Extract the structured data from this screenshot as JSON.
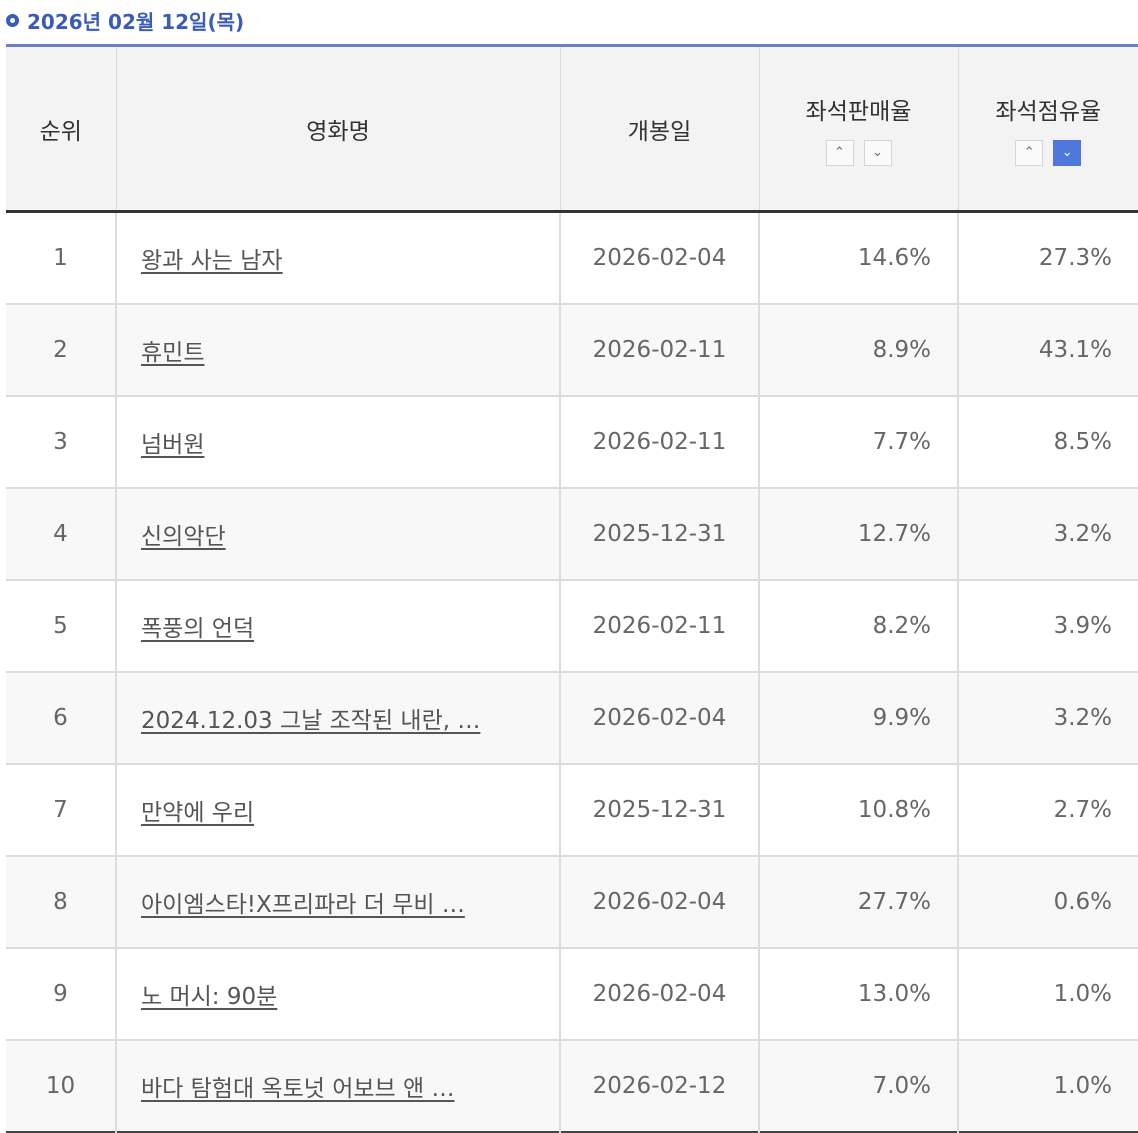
{
  "header": {
    "date_label": "2026년 02월 12일(목)"
  },
  "columns": {
    "rank": "순위",
    "title": "영화명",
    "release": "개봉일",
    "sales_rate": "좌석판매율",
    "share_rate": "좌석점유율"
  },
  "sort": {
    "up_glyph": "⌃",
    "down_glyph": "⌄",
    "active": "share_rate_desc"
  },
  "rows": [
    {
      "rank": "1",
      "title": "왕과 사는 남자",
      "release": "2026-02-04",
      "sales": "14.6%",
      "share": "27.3%"
    },
    {
      "rank": "2",
      "title": "휴민트",
      "release": "2026-02-11",
      "sales": "8.9%",
      "share": "43.1%"
    },
    {
      "rank": "3",
      "title": "넘버원",
      "release": "2026-02-11",
      "sales": "7.7%",
      "share": "8.5%"
    },
    {
      "rank": "4",
      "title": "신의악단",
      "release": "2025-12-31",
      "sales": "12.7%",
      "share": "3.2%"
    },
    {
      "rank": "5",
      "title": "폭풍의 언덕",
      "release": "2026-02-11",
      "sales": "8.2%",
      "share": "3.9%"
    },
    {
      "rank": "6",
      "title": "2024.12.03 그날 조작된 내란, …",
      "release": "2026-02-04",
      "sales": "9.9%",
      "share": "3.2%"
    },
    {
      "rank": "7",
      "title": "만약에 우리",
      "release": "2025-12-31",
      "sales": "10.8%",
      "share": "2.7%"
    },
    {
      "rank": "8",
      "title": "아이엠스타!X프리파라 더 무비 …",
      "release": "2026-02-04",
      "sales": "27.7%",
      "share": "0.6%"
    },
    {
      "rank": "9",
      "title": "노 머시: 90분",
      "release": "2026-02-04",
      "sales": "13.0%",
      "share": "1.0%"
    },
    {
      "rank": "10",
      "title": "바다 탐험대 옥토넛 어보브 앤 …",
      "release": "2026-02-12",
      "sales": "7.0%",
      "share": "1.0%"
    }
  ]
}
